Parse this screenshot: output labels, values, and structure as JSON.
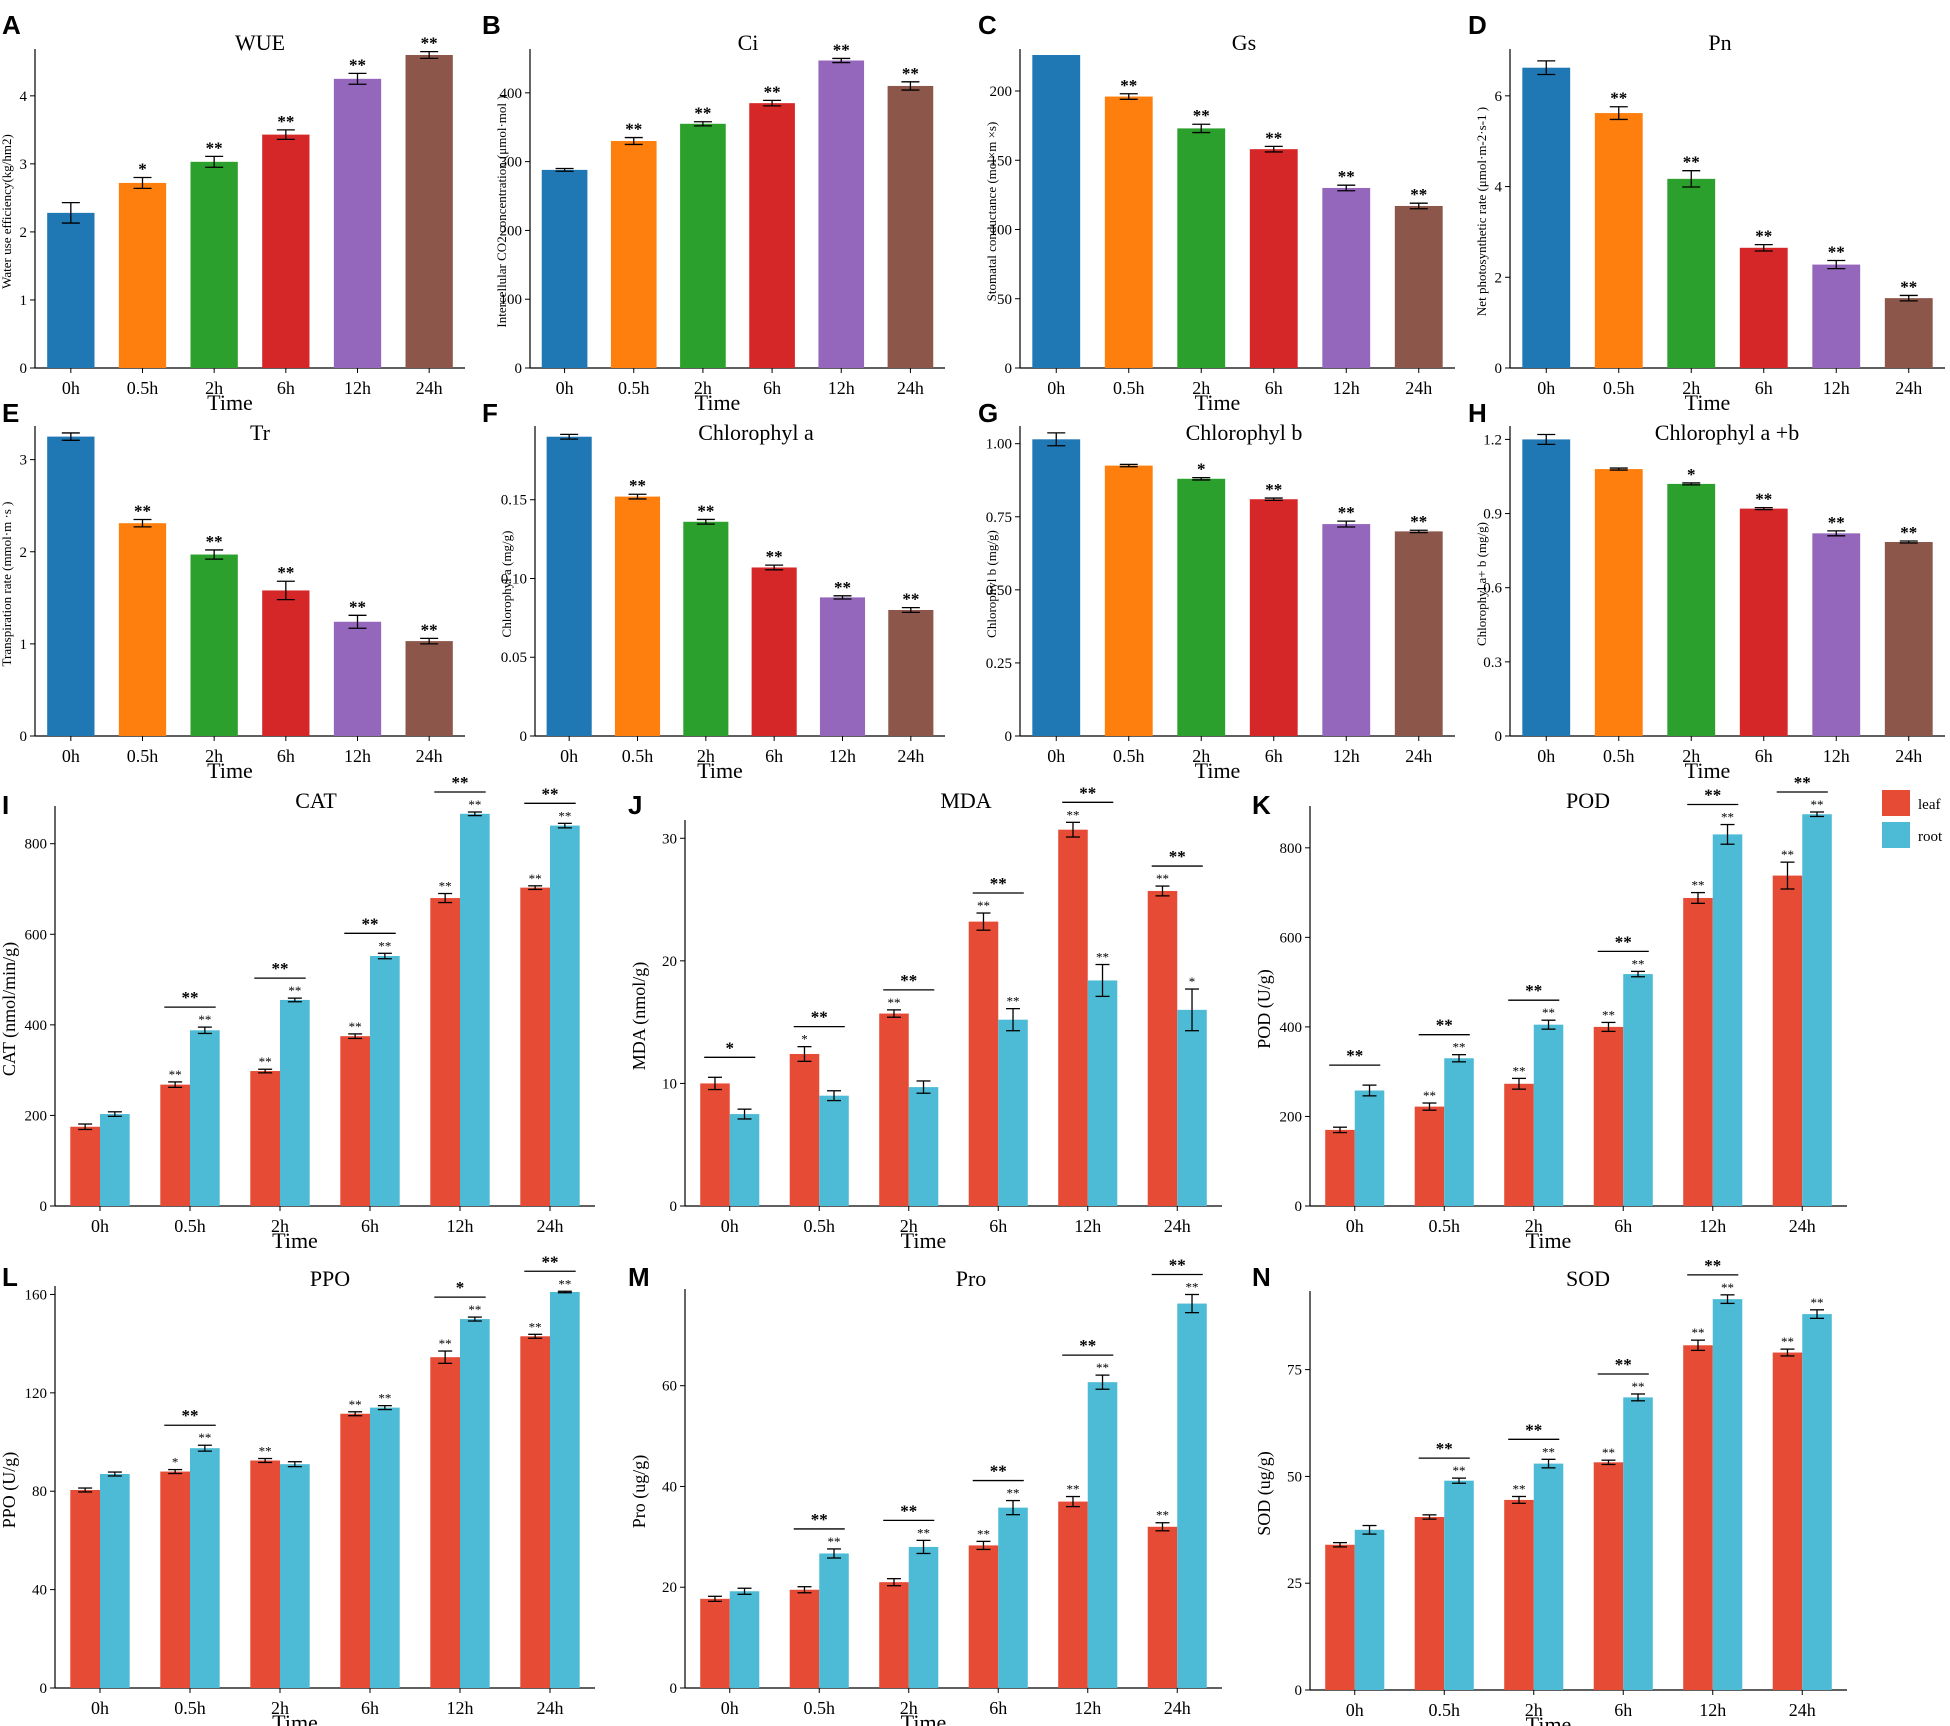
{
  "figure": {
    "xlabel": "Time",
    "legend": {
      "leaf": "leaf",
      "root": "root",
      "leaf_color": "#E64B35",
      "root_color": "#4DBBD5",
      "placement": "top-right of panel K"
    }
  },
  "chart_data": [
    {
      "type": "bar",
      "label": "A",
      "title": "WUE",
      "ylabel": "Water use efficiency(kg/hm2)",
      "xlabel": "Time",
      "categories": [
        "0h",
        "0.5h",
        "2h",
        "6h",
        "12h",
        "24h"
      ],
      "ylim": [
        0,
        4.6
      ],
      "yticks": [
        "0",
        "1",
        "2",
        "3",
        "4"
      ],
      "ytick_values": [
        0,
        1,
        2,
        3,
        4
      ],
      "values": [
        2.28,
        2.72,
        3.03,
        3.43,
        4.25,
        4.6
      ],
      "errors": [
        0.15,
        0.08,
        0.08,
        0.07,
        0.08,
        0.05
      ],
      "sig": [
        "",
        "*",
        "**",
        "**",
        "**",
        "**"
      ]
    },
    {
      "type": "bar",
      "label": "B",
      "title": "Ci",
      "ylabel": "Intercellular CO2 concentration (μmol·mol )",
      "xlabel": "Time",
      "categories": [
        "0h",
        "0.5h",
        "2h",
        "6h",
        "12h",
        "24h"
      ],
      "ylim": [
        0,
        455
      ],
      "yticks": [
        "0",
        "100",
        "200",
        "300",
        "400"
      ],
      "ytick_values": [
        0,
        100,
        200,
        300,
        400
      ],
      "values": [
        288,
        330,
        355,
        385,
        447,
        410
      ],
      "errors": [
        2,
        5,
        3,
        4,
        3,
        6
      ],
      "sig": [
        "",
        "**",
        "**",
        "**",
        "**",
        "**"
      ]
    },
    {
      "type": "bar",
      "label": "C",
      "title": "Gs",
      "ylabel": "Stomatal conductance (mol×m ×s)",
      "xlabel": "Time",
      "categories": [
        "0h",
        "0.5h",
        "2h",
        "6h",
        "12h",
        "24h"
      ],
      "ylim": [
        0,
        226
      ],
      "yticks": [
        "0",
        "50",
        "100",
        "150",
        "200"
      ],
      "ytick_values": [
        0,
        50,
        100,
        150,
        200
      ],
      "values": [
        226,
        196,
        173,
        158,
        130,
        117
      ],
      "errors": [
        0,
        2,
        3,
        2,
        2,
        2
      ],
      "sig": [
        "",
        "**",
        "**",
        "**",
        "**",
        "**"
      ]
    },
    {
      "type": "bar",
      "label": "D",
      "title": "Pn",
      "ylabel": "Net photosynthetic rate (μmol·m-2·s-1 )",
      "xlabel": "Time",
      "categories": [
        "0h",
        "0.5h",
        "2h",
        "6h",
        "12h",
        "24h"
      ],
      "ylim": [
        0,
        6.9
      ],
      "yticks": [
        "0",
        "2",
        "4",
        "6"
      ],
      "ytick_values": [
        0,
        2,
        4,
        6
      ],
      "values": [
        6.62,
        5.62,
        4.17,
        2.65,
        2.28,
        1.54
      ],
      "errors": [
        0.15,
        0.14,
        0.18,
        0.07,
        0.09,
        0.06
      ],
      "sig": [
        "",
        "**",
        "**",
        "**",
        "**",
        "**"
      ]
    },
    {
      "type": "bar",
      "label": "E",
      "title": "Tr",
      "ylabel": "Transpiration rate (mmol·m ·s )",
      "xlabel": "Time",
      "categories": [
        "0h",
        "0.5h",
        "2h",
        "6h",
        "12h",
        "24h"
      ],
      "ylim": [
        0,
        3.3
      ],
      "yticks": [
        "0",
        "1",
        "2",
        "3"
      ],
      "ytick_values": [
        0,
        1,
        2,
        3
      ],
      "values": [
        3.25,
        2.31,
        1.97,
        1.58,
        1.24,
        1.03
      ],
      "errors": [
        0.04,
        0.04,
        0.05,
        0.1,
        0.07,
        0.03
      ],
      "sig": [
        "",
        "**",
        "**",
        "**",
        "**",
        "**"
      ]
    },
    {
      "type": "bar",
      "label": "F",
      "title": "Chlorophyl a",
      "ylabel": "Chlorophyl a (mg/g)",
      "xlabel": "Time",
      "categories": [
        "0h",
        "0.5h",
        "2h",
        "6h",
        "12h",
        "24h"
      ],
      "ylim": [
        0,
        0.193
      ],
      "yticks": [
        "0",
        "0.05",
        "0.10",
        "0.15"
      ],
      "ytick_values": [
        0,
        0.05,
        0.1,
        0.15
      ],
      "values": [
        0.19,
        0.152,
        0.136,
        0.107,
        0.088,
        0.08
      ],
      "errors": [
        0.0015,
        0.0015,
        0.0015,
        0.0015,
        0.001,
        0.0015
      ],
      "sig": [
        "",
        "**",
        "**",
        "**",
        "**",
        "**"
      ]
    },
    {
      "type": "bar",
      "label": "G",
      "title": "Chlorophyl b",
      "ylabel": "Chlorophyl b (mg/g)",
      "xlabel": "Time",
      "categories": [
        "0h",
        "0.5h",
        "2h",
        "6h",
        "12h",
        "24h"
      ],
      "ylim": [
        0,
        1.04
      ],
      "yticks": [
        "0",
        "0.25",
        "0.50",
        "0.75",
        "1.00"
      ],
      "ytick_values": [
        0,
        0.25,
        0.5,
        0.75,
        1.0
      ],
      "values": [
        1.015,
        0.925,
        0.88,
        0.81,
        0.725,
        0.7
      ],
      "errors": [
        0.022,
        0.004,
        0.004,
        0.004,
        0.01,
        0.004
      ],
      "sig": [
        "",
        "",
        "*",
        "**",
        "**",
        "**"
      ]
    },
    {
      "type": "bar",
      "label": "H",
      "title": "Chlorophyl a +b",
      "ylabel": "Chlorophyl a+ b (mg/g)",
      "xlabel": "Time",
      "categories": [
        "0h",
        "0.5h",
        "2h",
        "6h",
        "12h",
        "24h"
      ],
      "ylim": [
        0,
        1.23
      ],
      "yticks": [
        "0",
        "0.3",
        "0.6",
        "0.9",
        "1.2"
      ],
      "ytick_values": [
        0,
        0.3,
        0.6,
        0.9,
        1.2
      ],
      "values": [
        1.2,
        1.08,
        1.02,
        0.92,
        0.82,
        0.785
      ],
      "errors": [
        0.02,
        0.004,
        0.004,
        0.004,
        0.01,
        0.004
      ],
      "sig": [
        "",
        "",
        "*",
        "**",
        "**",
        "**"
      ]
    },
    {
      "type": "grouped-bar",
      "label": "I",
      "title": "CAT",
      "ylabel": "CAT (nmol/min/g)",
      "xlabel": "Time",
      "categories": [
        "0h",
        "0.5h",
        "2h",
        "6h",
        "12h",
        "24h"
      ],
      "ylim": [
        0,
        870
      ],
      "yticks": [
        "0",
        "200",
        "400",
        "600",
        "800"
      ],
      "ytick_values": [
        0,
        200,
        400,
        600,
        800
      ],
      "series": [
        {
          "name": "leaf",
          "values": [
            175,
            268,
            298,
            375,
            680,
            703
          ],
          "errors": [
            6,
            6,
            4,
            5,
            10,
            4
          ],
          "sig": [
            "",
            "**",
            "**",
            "**",
            "**",
            "**"
          ]
        },
        {
          "name": "root",
          "values": [
            203,
            388,
            455,
            552,
            866,
            840
          ],
          "errors": [
            5,
            7,
            4,
            6,
            4,
            5
          ],
          "sig": [
            "",
            "**",
            "**",
            "**",
            "**",
            "**"
          ]
        }
      ],
      "pair_sig": [
        "",
        "**",
        "**",
        "**",
        "**",
        "**"
      ]
    },
    {
      "type": "grouped-bar",
      "label": "J",
      "title": "MDA",
      "ylabel": "MDA (nmol/g)",
      "xlabel": "Time",
      "categories": [
        "0h",
        "0.5h",
        "2h",
        "6h",
        "12h",
        "24h"
      ],
      "ylim": [
        0,
        31
      ],
      "yticks": [
        "0",
        "10",
        "20",
        "30"
      ],
      "ytick_values": [
        0,
        10,
        20,
        30
      ],
      "series": [
        {
          "name": "leaf",
          "values": [
            10,
            12.4,
            15.7,
            23.2,
            30.7,
            25.7
          ],
          "errors": [
            0.5,
            0.6,
            0.3,
            0.7,
            0.6,
            0.4
          ],
          "sig": [
            "",
            "*",
            "**",
            "**",
            "**",
            "**"
          ]
        },
        {
          "name": "root",
          "values": [
            7.5,
            9,
            9.7,
            15.2,
            18.4,
            16
          ],
          "errors": [
            0.4,
            0.4,
            0.5,
            0.9,
            1.3,
            1.7
          ],
          "sig": [
            "",
            "",
            "",
            "**",
            "**",
            "*"
          ]
        }
      ],
      "pair_sig": [
        "*",
        "**",
        "**",
        "**",
        "**",
        "**"
      ]
    },
    {
      "type": "grouped-bar",
      "label": "K",
      "title": "POD",
      "ylabel": "POD (U/g)",
      "xlabel": "Time",
      "categories": [
        "0h",
        "0.5h",
        "2h",
        "6h",
        "12h",
        "24h"
      ],
      "ylim": [
        0,
        880
      ],
      "yticks": [
        "0",
        "200",
        "400",
        "600",
        "800"
      ],
      "ytick_values": [
        0,
        200,
        400,
        600,
        800
      ],
      "series": [
        {
          "name": "leaf",
          "values": [
            170,
            222,
            273,
            400,
            688,
            738
          ],
          "errors": [
            6,
            8,
            12,
            10,
            12,
            30
          ],
          "sig": [
            "",
            "**",
            "**",
            "**",
            "**",
            "**"
          ]
        },
        {
          "name": "root",
          "values": [
            258,
            330,
            405,
            518,
            830,
            875
          ],
          "errors": [
            12,
            8,
            10,
            6,
            22,
            5
          ],
          "sig": [
            "",
            "**",
            "**",
            "**",
            "**",
            "**"
          ]
        }
      ],
      "pair_sig": [
        "**",
        "**",
        "**",
        "**",
        "**",
        "**"
      ]
    },
    {
      "type": "grouped-bar",
      "label": "L",
      "title": "PPO",
      "ylabel": "PPO (U/g)",
      "xlabel": "Time",
      "categories": [
        "0h",
        "0.5h",
        "2h",
        "6h",
        "12h",
        "24h"
      ],
      "ylim": [
        0,
        161
      ],
      "yticks": [
        "0",
        "40",
        "80",
        "120",
        "160"
      ],
      "ytick_values": [
        0,
        40,
        80,
        120,
        160
      ],
      "series": [
        {
          "name": "leaf",
          "values": [
            80.5,
            88,
            92.5,
            111.5,
            134.5,
            143
          ],
          "errors": [
            0.8,
            0.8,
            0.8,
            0.8,
            2.5,
            0.8
          ],
          "sig": [
            "",
            "*",
            "**",
            "**",
            "**",
            "**"
          ]
        },
        {
          "name": "root",
          "values": [
            87,
            97.5,
            91,
            114,
            150,
            161
          ],
          "errors": [
            0.8,
            1.2,
            1,
            0.8,
            0.8,
            0.3
          ],
          "sig": [
            "",
            "**",
            "",
            "**",
            "**",
            "**"
          ]
        }
      ],
      "pair_sig": [
        "",
        "**",
        "",
        "",
        "*",
        "**"
      ]
    },
    {
      "type": "grouped-bar",
      "label": "M",
      "title": "Pro",
      "ylabel": "Pro (ug/g)",
      "xlabel": "Time",
      "categories": [
        "0h",
        "0.5h",
        "2h",
        "6h",
        "12h",
        "24h"
      ],
      "ylim": [
        0,
        78
      ],
      "yticks": [
        "0",
        "20",
        "40",
        "60"
      ],
      "ytick_values": [
        0,
        20,
        40,
        60
      ],
      "series": [
        {
          "name": "leaf",
          "values": [
            17.7,
            19.5,
            21,
            28.3,
            37,
            32
          ],
          "errors": [
            0.5,
            0.6,
            0.7,
            0.8,
            1,
            0.8
          ],
          "sig": [
            "",
            "",
            "",
            "**",
            "**",
            "**"
          ]
        },
        {
          "name": "root",
          "values": [
            19.2,
            26.7,
            28,
            35.8,
            60.7,
            76.3
          ],
          "errors": [
            0.6,
            0.9,
            1.3,
            1.4,
            1.4,
            1.8
          ],
          "sig": [
            "",
            "**",
            "**",
            "**",
            "**",
            "**"
          ]
        }
      ],
      "pair_sig": [
        "",
        "**",
        "**",
        "**",
        "**",
        "**"
      ]
    },
    {
      "type": "grouped-bar",
      "label": "N",
      "title": "SOD",
      "ylabel": "SOD (ug/g)",
      "xlabel": "Time",
      "categories": [
        "0h",
        "0.5h",
        "2h",
        "6h",
        "12h",
        "24h"
      ],
      "ylim": [
        0,
        92
      ],
      "yticks": [
        "0",
        "25",
        "50",
        "75"
      ],
      "ytick_values": [
        0,
        25,
        50,
        75
      ],
      "series": [
        {
          "name": "leaf",
          "values": [
            34,
            40.5,
            44.5,
            53.3,
            80.7,
            79
          ],
          "errors": [
            0.5,
            0.5,
            0.8,
            0.5,
            1.2,
            0.8
          ],
          "sig": [
            "",
            "",
            "**",
            "**",
            "**",
            "**"
          ]
        },
        {
          "name": "root",
          "values": [
            37.5,
            49,
            53,
            68.5,
            91.5,
            88
          ],
          "errors": [
            1,
            0.6,
            1,
            0.8,
            1,
            1
          ],
          "sig": [
            "",
            "**",
            "**",
            "**",
            "**",
            "**"
          ]
        }
      ],
      "pair_sig": [
        "",
        "**",
        "**",
        "**",
        "**",
        ""
      ]
    }
  ]
}
